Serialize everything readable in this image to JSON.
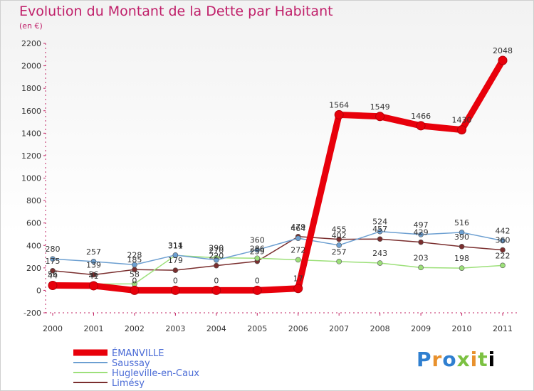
{
  "title": "Evolution du Montant de la Dette par Habitant",
  "subtitle": "(en €)",
  "logo": [
    "P",
    "r",
    "o",
    "x",
    "i",
    "t",
    "i"
  ],
  "chart_data": {
    "type": "line",
    "x": [
      "2000",
      "2001",
      "2002",
      "2003",
      "2004",
      "2005",
      "2006",
      "2007",
      "2008",
      "2009",
      "2010",
      "2011"
    ],
    "ylim": [
      -200,
      2200
    ],
    "yticks": [
      -200,
      0,
      200,
      400,
      600,
      800,
      1000,
      1200,
      1400,
      1600,
      1800,
      2000,
      2200
    ],
    "grid": false,
    "legend_position": "bottom-left",
    "series": [
      {
        "name": "ÉMANVILLE",
        "color": "#e8000b",
        "width": 9,
        "radius": 6,
        "values": [
          44,
          41,
          0,
          0,
          0,
          0,
          17,
          1564,
          1549,
          1466,
          1430,
          2048
        ],
        "labels": [
          "44",
          "41",
          "0",
          "0",
          "0",
          "0",
          "17",
          "1564",
          "1549",
          "1466",
          "1430",
          "2048"
        ]
      },
      {
        "name": "Saussay",
        "color": "#6c9fd1",
        "width": 1.5,
        "radius": 3.5,
        "values": [
          280,
          257,
          228,
          314,
          270,
          360,
          464,
          402,
          524,
          497,
          516,
          442
        ],
        "labels": [
          "280",
          "257",
          "228",
          "314",
          "270",
          "360",
          "464",
          "402",
          "524",
          "497",
          "516",
          "442"
        ]
      },
      {
        "name": "Hugleville-en-Caux",
        "color": "#9de07a",
        "width": 1.5,
        "radius": 3.5,
        "values": [
          56,
          56,
          58,
          311,
          290,
          286,
          272,
          257,
          243,
          203,
          198,
          222
        ],
        "labels": [
          "56",
          "56",
          "58",
          "311",
          "290",
          "286",
          "272",
          "257",
          "243",
          "203",
          "198",
          "222"
        ]
      },
      {
        "name": "Limésy",
        "color": "#7a2e2e",
        "width": 1.5,
        "radius": 3.5,
        "values": [
          175,
          139,
          185,
          179,
          220,
          259,
          479,
          455,
          457,
          429,
          390,
          360
        ],
        "labels": [
          "175",
          "139",
          "185",
          "179",
          "220",
          "259",
          "479",
          "455",
          "457",
          "429",
          "390",
          "360"
        ]
      }
    ]
  }
}
